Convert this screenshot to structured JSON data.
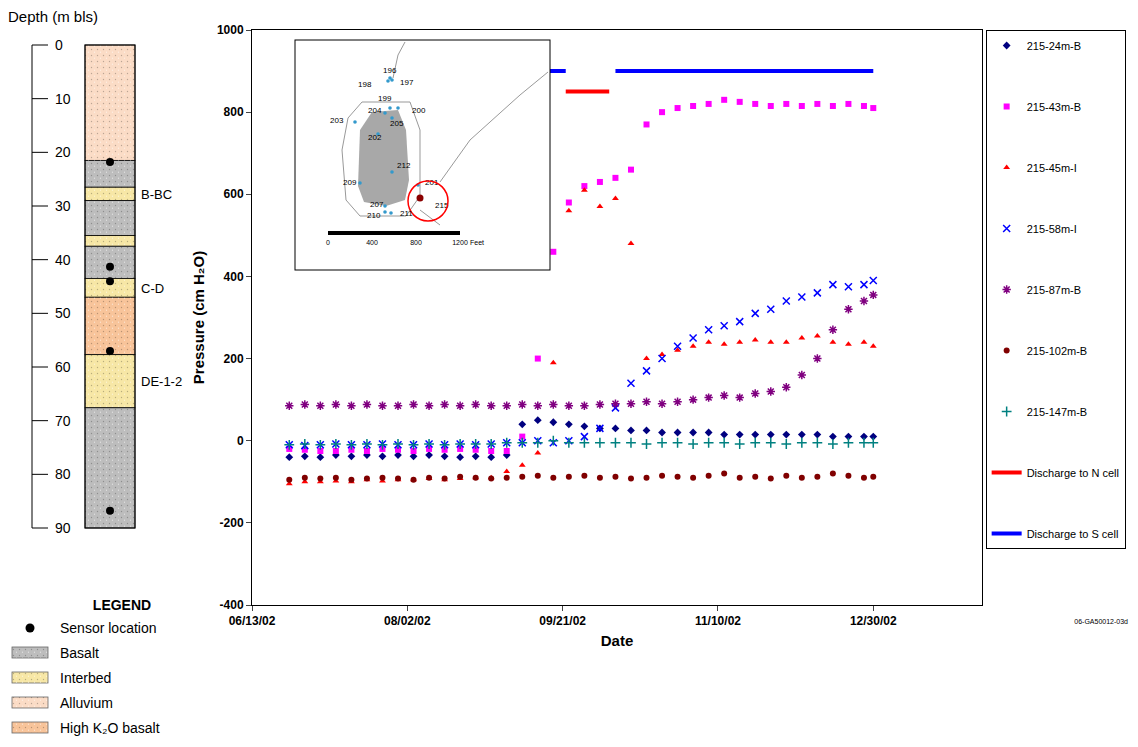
{
  "chart_data": {
    "type": "scatter",
    "xlabel": "Date",
    "ylabel": "Pressure (cm H₂O)",
    "xlim": [
      "2002-06-13",
      "2003-02-03"
    ],
    "xticks": [
      {
        "value": "2002-06-13",
        "label": "06/13/02"
      },
      {
        "value": "2002-08-02",
        "label": "08/02/02"
      },
      {
        "value": "2002-09-21",
        "label": "09/21/02"
      },
      {
        "value": "2002-11-10",
        "label": "11/10/02"
      },
      {
        "value": "2002-12-30",
        "label": "12/30/02"
      }
    ],
    "ylim": [
      -400,
      1000
    ],
    "yticks": [
      -400,
      -200,
      0,
      200,
      400,
      600,
      800,
      1000
    ],
    "grid": false,
    "legend": "right",
    "x": [
      "2002-06-25",
      "2002-06-30",
      "2002-07-05",
      "2002-07-10",
      "2002-07-15",
      "2002-07-20",
      "2002-07-25",
      "2002-07-30",
      "2002-08-04",
      "2002-08-09",
      "2002-08-14",
      "2002-08-19",
      "2002-08-24",
      "2002-08-29",
      "2002-09-03",
      "2002-09-08",
      "2002-09-13",
      "2002-09-18",
      "2002-09-23",
      "2002-09-28",
      "2002-10-03",
      "2002-10-08",
      "2002-10-13",
      "2002-10-18",
      "2002-10-23",
      "2002-10-28",
      "2002-11-02",
      "2002-11-07",
      "2002-11-12",
      "2002-11-17",
      "2002-11-22",
      "2002-11-27",
      "2002-12-02",
      "2002-12-07",
      "2002-12-12",
      "2002-12-17",
      "2002-12-22",
      "2002-12-27",
      "2002-12-30"
    ],
    "series": [
      {
        "name": "215-24m-B",
        "color": "#000080",
        "marker": "diamond",
        "values": [
          -40,
          -38,
          -40,
          -35,
          -38,
          -35,
          -38,
          -35,
          -38,
          -35,
          -38,
          -40,
          -38,
          -40,
          -35,
          40,
          50,
          45,
          40,
          35,
          30,
          30,
          25,
          25,
          20,
          20,
          20,
          20,
          15,
          15,
          15,
          15,
          15,
          15,
          15,
          10,
          10,
          10,
          10
        ]
      },
      {
        "name": "215-43m-B",
        "color": "#FF00FF",
        "marker": "square",
        "values": [
          -20,
          -22,
          -25,
          -25,
          -22,
          -25,
          -20,
          -22,
          -25,
          -20,
          -22,
          -20,
          -22,
          -25,
          -25,
          10,
          200,
          460,
          580,
          620,
          630,
          640,
          660,
          770,
          800,
          810,
          815,
          820,
          830,
          825,
          820,
          815,
          820,
          815,
          820,
          815,
          820,
          815,
          810
        ]
      },
      {
        "name": "215-45m-I",
        "color": "#FF0000",
        "marker": "triangle-up",
        "values": [
          -105,
          -100,
          -100,
          -98,
          -100,
          -95,
          -98,
          -95,
          -95,
          -92,
          -95,
          -92,
          -90,
          -90,
          -75,
          -60,
          -30,
          190,
          560,
          610,
          570,
          590,
          480,
          200,
          210,
          220,
          230,
          240,
          235,
          240,
          245,
          240,
          240,
          250,
          255,
          240,
          235,
          240,
          230
        ]
      },
      {
        "name": "215-58m-I",
        "color": "#0000FF",
        "marker": "x",
        "values": [
          -10,
          -12,
          -10,
          -8,
          -10,
          -10,
          -8,
          -10,
          -10,
          -8,
          -10,
          -8,
          -10,
          -8,
          -5,
          -5,
          0,
          -5,
          0,
          10,
          30,
          80,
          140,
          170,
          200,
          230,
          250,
          270,
          280,
          290,
          310,
          320,
          340,
          350,
          360,
          380,
          375,
          380,
          390
        ]
      },
      {
        "name": "215-87m-B",
        "color": "#800080",
        "marker": "asterisk",
        "values": [
          85,
          88,
          85,
          88,
          85,
          88,
          85,
          85,
          88,
          85,
          88,
          85,
          88,
          85,
          85,
          88,
          85,
          88,
          85,
          85,
          88,
          90,
          90,
          95,
          90,
          95,
          100,
          105,
          110,
          105,
          115,
          120,
          130,
          160,
          200,
          270,
          320,
          340,
          355
        ]
      },
      {
        "name": "215-102m-B",
        "color": "#800000",
        "marker": "circle",
        "values": [
          -95,
          -90,
          -92,
          -90,
          -95,
          -92,
          -90,
          -92,
          -95,
          -90,
          -92,
          -88,
          -90,
          -92,
          -90,
          -88,
          -85,
          -90,
          -88,
          -85,
          -90,
          -88,
          -92,
          -90,
          -85,
          -88,
          -90,
          -85,
          -80,
          -90,
          -88,
          -92,
          -85,
          -90,
          -88,
          -80,
          -85,
          -90,
          -88
        ]
      },
      {
        "name": "215-147m-B",
        "color": "#008080",
        "marker": "cross",
        "values": [
          -10,
          -8,
          -10,
          -8,
          -10,
          -8,
          -10,
          -8,
          -10,
          -8,
          -10,
          -8,
          -8,
          -8,
          -5,
          -5,
          -5,
          0,
          -5,
          -5,
          -5,
          -5,
          -5,
          -8,
          -5,
          -5,
          -8,
          -5,
          -5,
          -8,
          -5,
          -5,
          -8,
          -5,
          -5,
          -8,
          -5,
          -5,
          -5
        ]
      },
      {
        "name": "Discharge to N cell",
        "color": "#FF0000",
        "type": "line",
        "line_style": "solid",
        "x": [
          "2002-09-22",
          "2002-10-06"
        ],
        "values": [
          850,
          850
        ]
      },
      {
        "name": "Discharge to S cell",
        "color": "#0000FF",
        "type": "line",
        "line_style": "solid",
        "x": [
          "2002-08-31",
          "2002-09-22",
          null,
          "2002-10-08",
          "2002-12-30"
        ],
        "values": [
          900,
          900,
          null,
          900,
          900
        ]
      }
    ]
  },
  "depth_column": {
    "title": "Depth (m bls)",
    "ylim": [
      0,
      90
    ],
    "yticks": [
      0,
      10,
      20,
      30,
      40,
      50,
      60,
      70,
      80,
      90
    ],
    "layers": [
      {
        "top": 0,
        "bottom": 21.5,
        "type": "Alluvium"
      },
      {
        "top": 21.5,
        "bottom": 26.5,
        "type": "Basalt"
      },
      {
        "top": 26.5,
        "bottom": 29,
        "type": "Interbed",
        "label": "B-BC"
      },
      {
        "top": 29,
        "bottom": 35.5,
        "type": "Basalt"
      },
      {
        "top": 35.5,
        "bottom": 37.5,
        "type": "Interbed"
      },
      {
        "top": 37.5,
        "bottom": 43.5,
        "type": "Basalt"
      },
      {
        "top": 43.5,
        "bottom": 47,
        "type": "Interbed",
        "label": "C-D"
      },
      {
        "top": 47,
        "bottom": 57.7,
        "type": "High K₂O basalt"
      },
      {
        "top": 57.7,
        "bottom": 67.6,
        "type": "Interbed",
        "label": "DE-1-2"
      },
      {
        "top": 67.6,
        "bottom": 90,
        "type": "Basalt"
      }
    ],
    "sensors": [
      21.8,
      41.3,
      44,
      57,
      86.8
    ],
    "legend_title": "LEGEND",
    "legend": [
      {
        "label": "Sensor location",
        "marker": "circle",
        "color": "#000000"
      },
      {
        "label": "Basalt",
        "color": "#bdbdbd"
      },
      {
        "label": "Interbed",
        "color": "#f7e7a6"
      },
      {
        "label": "Alluvium",
        "color": "#fbdcc6"
      },
      {
        "label": "High K₂O basalt",
        "color": "#f8c49a"
      }
    ]
  },
  "inset_map": {
    "wells": [
      "196",
      "198",
      "197",
      "199",
      "204",
      "200",
      "203",
      "205",
      "202",
      "212",
      "209",
      "201",
      "215",
      "207",
      "210",
      "211"
    ],
    "highlight": "215",
    "scale_ticks": [
      0,
      400,
      800,
      1200
    ],
    "scale_unit": "Feet"
  },
  "figure_id": "06-GA50012-03d"
}
